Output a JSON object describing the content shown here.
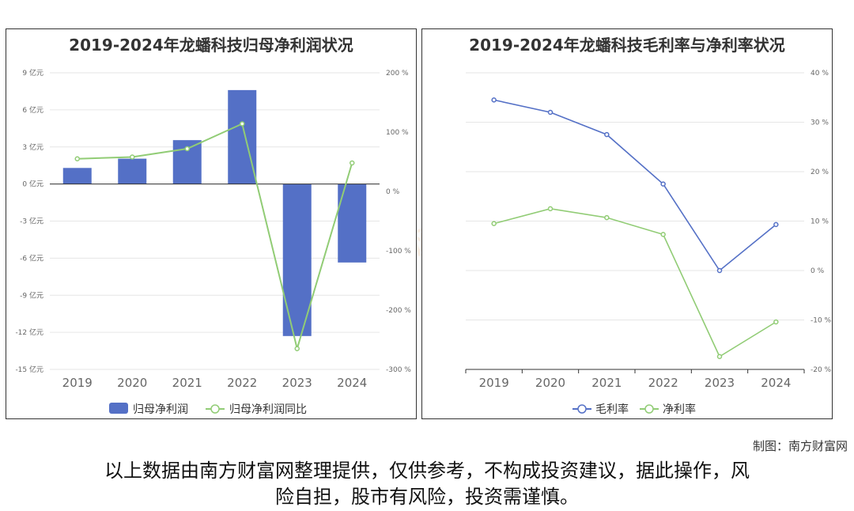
{
  "footer": {
    "credit": "制图：南方财富网",
    "disclaimer_line1": "以上数据由南方财富网整理提供，仅供参考，不构成投资建议，据此操作，风",
    "disclaimer_line2": "险自担，股市有风险，投资需谨慎。"
  },
  "colors": {
    "bar": "#5470c6",
    "line_green": "#91cc75",
    "line_blue": "#5470c6"
  },
  "chart_data": [
    {
      "type": "bar",
      "title": "2019-2024年龙蟠科技归母净利润状况",
      "categories": [
        "2019",
        "2020",
        "2021",
        "2022",
        "2023",
        "2024"
      ],
      "y_left": {
        "ylim": [
          -15,
          9
        ],
        "ticks": [
          9,
          6,
          3,
          0,
          -3,
          -6,
          -9,
          -12,
          -15
        ],
        "unit": "亿元",
        "tick_labels": [
          "9 亿元",
          "6 亿元",
          "3 亿元",
          "0 亿元",
          "-3 亿元",
          "-6 亿元",
          "-9 亿元",
          "-12 亿元",
          "-15 亿元"
        ]
      },
      "y_right": {
        "ylim": [
          -300,
          200
        ],
        "ticks": [
          200,
          100,
          0,
          -100,
          -200,
          -300
        ],
        "tick_labels": [
          "200 %",
          "100 %",
          "0 %",
          "-100 %",
          "-200 %",
          "-300 %"
        ]
      },
      "series": [
        {
          "name": "归母净利润",
          "type": "bar",
          "axis": "left",
          "values": [
            1.3,
            2.05,
            3.55,
            7.6,
            -12.3,
            -6.35
          ]
        },
        {
          "name": "归母净利润同比",
          "type": "line",
          "axis": "right",
          "values": [
            55,
            58,
            72,
            114,
            -265,
            48
          ]
        }
      ],
      "legend": "bottom-center"
    },
    {
      "type": "line",
      "title": "2019-2024年龙蟠科技毛利率与净利率状况",
      "categories": [
        "2019",
        "2020",
        "2021",
        "2022",
        "2023",
        "2024"
      ],
      "y_right": {
        "ylim": [
          -20,
          40
        ],
        "ticks": [
          40,
          30,
          20,
          10,
          0,
          -10,
          -20
        ],
        "tick_labels": [
          "40 %",
          "30 %",
          "20 %",
          "10 %",
          "0 %",
          "-10 %",
          "-20 %"
        ]
      },
      "series": [
        {
          "name": "毛利率",
          "values": [
            34.5,
            32,
            27.5,
            17.5,
            0,
            9.3
          ]
        },
        {
          "name": "净利率",
          "values": [
            9.5,
            12.5,
            10.7,
            7.3,
            -17.4,
            -10.4
          ]
        }
      ],
      "legend": "bottom-center"
    }
  ]
}
